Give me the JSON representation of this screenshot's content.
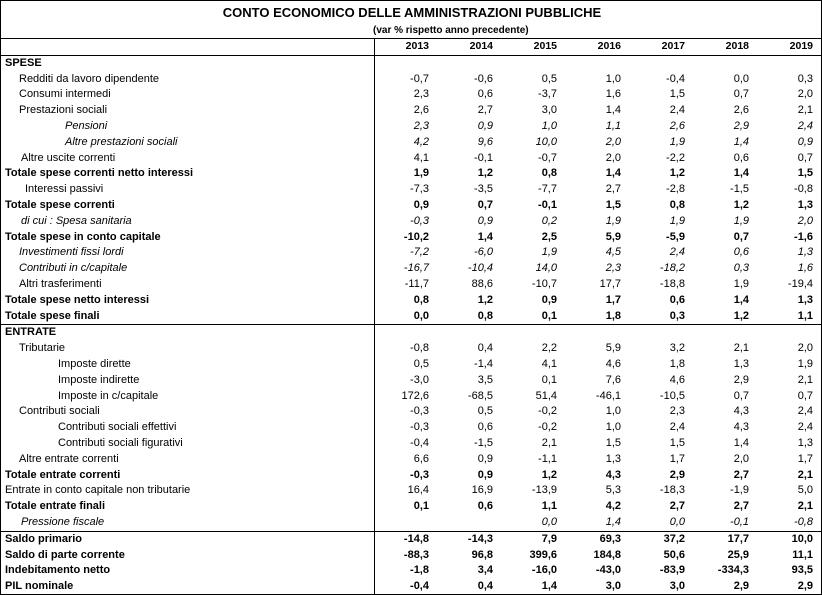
{
  "header": {
    "title": "CONTO ECONOMICO DELLE AMMINISTRAZIONI PUBBLICHE",
    "subtitle": "(var % rispetto anno precedente)"
  },
  "columns": [
    "2013",
    "2014",
    "2015",
    "2016",
    "2017",
    "2018",
    "2019"
  ],
  "rows": [
    {
      "label": "SPESE",
      "values": [
        "",
        "",
        "",
        "",
        "",
        "",
        ""
      ]
    },
    {
      "label": "Redditi da lavoro dipendente",
      "values": [
        "-0,7",
        "-0,6",
        "0,5",
        "1,0",
        "-0,4",
        "0,0",
        "0,3"
      ]
    },
    {
      "label": "Consumi intermedi",
      "values": [
        "2,3",
        "0,6",
        "-3,7",
        "1,6",
        "1,5",
        "0,7",
        "2,0"
      ]
    },
    {
      "label": "Prestazioni sociali",
      "values": [
        "2,6",
        "2,7",
        "3,0",
        "1,4",
        "2,4",
        "2,6",
        "2,1"
      ]
    },
    {
      "label": "Pensioni",
      "values": [
        "2,3",
        "0,9",
        "1,0",
        "1,1",
        "2,6",
        "2,9",
        "2,4"
      ]
    },
    {
      "label": "Altre prestazioni sociali",
      "values": [
        "4,2",
        "9,6",
        "10,0",
        "2,0",
        "1,9",
        "1,4",
        "0,9"
      ]
    },
    {
      "label": "Altre uscite correnti",
      "values": [
        "4,1",
        "-0,1",
        "-0,7",
        "2,0",
        "-2,2",
        "0,6",
        "0,7"
      ]
    },
    {
      "label": "Totale spese correnti netto interessi",
      "values": [
        "1,9",
        "1,2",
        "0,8",
        "1,4",
        "1,2",
        "1,4",
        "1,5"
      ]
    },
    {
      "label": "Interessi passivi",
      "values": [
        "-7,3",
        "-3,5",
        "-7,7",
        "2,7",
        "-2,8",
        "-1,5",
        "-0,8"
      ]
    },
    {
      "label": "Totale spese correnti",
      "values": [
        "0,9",
        "0,7",
        "-0,1",
        "1,5",
        "0,8",
        "1,2",
        "1,3"
      ]
    },
    {
      "label": "di cui : Spesa sanitaria",
      "values": [
        "-0,3",
        "0,9",
        "0,2",
        "1,9",
        "1,9",
        "1,9",
        "2,0"
      ]
    },
    {
      "label": "Totale spese in conto capitale",
      "values": [
        "-10,2",
        "1,4",
        "2,5",
        "5,9",
        "-5,9",
        "0,7",
        "-1,6"
      ]
    },
    {
      "label": "Investimenti fissi lordi",
      "values": [
        "-7,2",
        "-6,0",
        "1,9",
        "4,5",
        "2,4",
        "0,6",
        "1,3"
      ]
    },
    {
      "label": "Contributi in c/capitale",
      "values": [
        "-16,7",
        "-10,4",
        "14,0",
        "2,3",
        "-18,2",
        "0,3",
        "1,6"
      ]
    },
    {
      "label": "Altri trasferimenti",
      "values": [
        "-11,7",
        "88,6",
        "-10,7",
        "17,7",
        "-18,8",
        "1,9",
        "-19,4"
      ]
    },
    {
      "label": "Totale spese netto interessi",
      "values": [
        "0,8",
        "1,2",
        "0,9",
        "1,7",
        "0,6",
        "1,4",
        "1,3"
      ]
    },
    {
      "label": "Totale spese finali",
      "values": [
        "0,0",
        "0,8",
        "0,1",
        "1,8",
        "0,3",
        "1,2",
        "1,1"
      ]
    },
    {
      "label": "ENTRATE",
      "values": [
        "",
        "",
        "",
        "",
        "",
        "",
        ""
      ]
    },
    {
      "label": "Tributarie",
      "values": [
        "-0,8",
        "0,4",
        "2,2",
        "5,9",
        "3,2",
        "2,1",
        "2,0"
      ]
    },
    {
      "label": "Imposte dirette",
      "values": [
        "0,5",
        "-1,4",
        "4,1",
        "4,6",
        "1,8",
        "1,3",
        "1,9"
      ]
    },
    {
      "label": "Imposte indirette",
      "values": [
        "-3,0",
        "3,5",
        "0,1",
        "7,6",
        "4,6",
        "2,9",
        "2,1"
      ]
    },
    {
      "label": "Imposte in c/capitale",
      "values": [
        "172,6",
        "-68,5",
        "51,4",
        "-46,1",
        "-10,5",
        "0,7",
        "0,7"
      ]
    },
    {
      "label": "Contributi sociali",
      "values": [
        "-0,3",
        "0,5",
        "-0,2",
        "1,0",
        "2,3",
        "4,3",
        "2,4"
      ]
    },
    {
      "label": "Contributi sociali effettivi",
      "values": [
        "-0,3",
        "0,6",
        "-0,2",
        "1,0",
        "2,4",
        "4,3",
        "2,4"
      ]
    },
    {
      "label": "Contributi sociali figurativi",
      "values": [
        "-0,4",
        "-1,5",
        "2,1",
        "1,5",
        "1,5",
        "1,4",
        "1,3"
      ]
    },
    {
      "label": "Altre entrate correnti",
      "values": [
        "6,6",
        "0,9",
        "-1,1",
        "1,3",
        "1,7",
        "2,0",
        "1,7"
      ]
    },
    {
      "label": "Totale entrate correnti",
      "values": [
        "-0,3",
        "0,9",
        "1,2",
        "4,3",
        "2,9",
        "2,7",
        "2,1"
      ]
    },
    {
      "label": "Entrate in conto capitale non tributarie",
      "values": [
        "16,4",
        "16,9",
        "-13,9",
        "5,3",
        "-18,3",
        "-1,9",
        "5,0"
      ]
    },
    {
      "label": "Totale entrate finali",
      "values": [
        "0,1",
        "0,6",
        "1,1",
        "4,2",
        "2,7",
        "2,7",
        "2,1"
      ]
    },
    {
      "label": "Pressione fiscale",
      "values": [
        "",
        "",
        "0,0",
        "1,4",
        "0,0",
        "-0,1",
        "-0,8"
      ]
    },
    {
      "label": "Saldo primario",
      "values": [
        "-14,8",
        "-14,3",
        "7,9",
        "69,3",
        "37,2",
        "17,7",
        "10,0"
      ]
    },
    {
      "label": "Saldo di parte corrente",
      "values": [
        "-88,3",
        "96,8",
        "399,6",
        "184,8",
        "50,6",
        "25,9",
        "11,1"
      ]
    },
    {
      "label": "Indebitamento netto",
      "values": [
        "-1,8",
        "3,4",
        "-16,0",
        "-43,0",
        "-83,9",
        "-334,3",
        "93,5"
      ]
    },
    {
      "label": "PIL nominale",
      "values": [
        "-0,4",
        "0,4",
        "1,4",
        "3,0",
        "3,0",
        "2,9",
        "2,9"
      ]
    }
  ]
}
